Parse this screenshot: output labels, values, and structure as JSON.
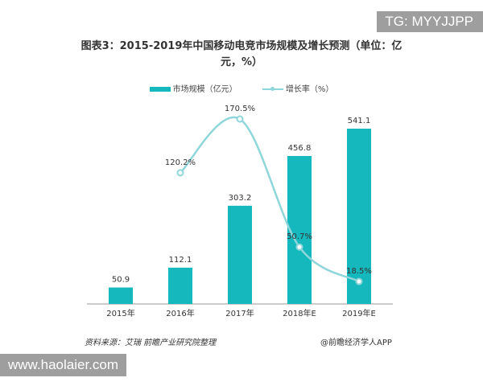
{
  "watermark_tg": "TG: MYYJJPP",
  "watermark_site": "www.haolaier.com",
  "source": "资料来源：艾瑞 前瞻产业研究院整理",
  "credit": "@前瞻经济学人APP",
  "chart_data": {
    "type": "bar+line",
    "title": "图表3：2015-2019年中国移动电竞市场规模及增长预测（单位：亿元，%）",
    "categories": [
      "2015年",
      "2016年",
      "2017年",
      "2018年E",
      "2019年E"
    ],
    "series": [
      {
        "name": "市场规模（亿元）",
        "type": "bar",
        "color": "#14b8bd",
        "values": [
          50.9,
          112.1,
          303.2,
          456.8,
          541.1
        ],
        "labels": [
          "50.9",
          "112.1",
          "303.2",
          "456.8",
          "541.1"
        ]
      },
      {
        "name": "增长率（%）",
        "type": "line",
        "color": "#8fd6da",
        "values": [
          null,
          120.2,
          170.5,
          50.7,
          18.5
        ],
        "labels": [
          "",
          "120.2%",
          "170.5%",
          "50.7%",
          "18.5%"
        ]
      }
    ],
    "legend": "top-center",
    "grid": false
  }
}
